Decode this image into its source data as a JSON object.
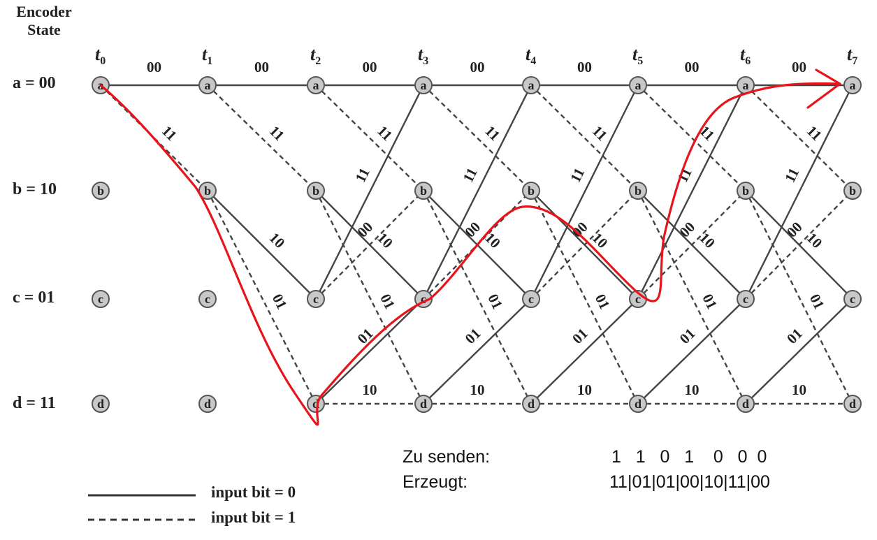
{
  "header": {
    "line1": "Encoder",
    "line2": "State"
  },
  "states": [
    {
      "label": "a = 00",
      "node": "a"
    },
    {
      "label": "b = 10",
      "node": "b"
    },
    {
      "label": "c = 01",
      "node": "c"
    },
    {
      "label": "d = 11",
      "node": "d"
    }
  ],
  "time_labels": [
    {
      "base": "t",
      "sub": "0"
    },
    {
      "base": "t",
      "sub": "1"
    },
    {
      "base": "t",
      "sub": "2"
    },
    {
      "base": "t",
      "sub": "3"
    },
    {
      "base": "t",
      "sub": "4"
    },
    {
      "base": "t",
      "sub": "5"
    },
    {
      "base": "t",
      "sub": "6"
    },
    {
      "base": "t",
      "sub": "7"
    }
  ],
  "transitions": [
    {
      "from": "a",
      "to": "a",
      "output": "00",
      "input_bit": 0
    },
    {
      "from": "a",
      "to": "b",
      "output": "11",
      "input_bit": 1
    },
    {
      "from": "b",
      "to": "c",
      "output": "10",
      "input_bit": 0
    },
    {
      "from": "b",
      "to": "d",
      "output": "01",
      "input_bit": 1
    },
    {
      "from": "c",
      "to": "a",
      "output": "11",
      "input_bit": 0
    },
    {
      "from": "c",
      "to": "b",
      "output": "00",
      "input_bit": 1
    },
    {
      "from": "d",
      "to": "c",
      "output": "01",
      "input_bit": 0
    },
    {
      "from": "d",
      "to": "d",
      "output": "10",
      "input_bit": 1
    }
  ],
  "highlight_path": [
    "a",
    "b",
    "d",
    "c",
    "b",
    "c",
    "a",
    "a"
  ],
  "legend": [
    {
      "style": "solid",
      "label": "input bit = 0"
    },
    {
      "style": "dashed",
      "label": "input bit = 1"
    }
  ],
  "info": {
    "send_label": "Zu senden:",
    "send_value": "1   1   0   1    0   0  0",
    "generated_label": "Erzeugt:",
    "generated_value": "11|01|01|00|10|11|00"
  },
  "colors": {
    "edge": "#444444",
    "node_fill": "#c8c8c8",
    "node_stroke": "#555555",
    "highlight": "#e8141b"
  }
}
